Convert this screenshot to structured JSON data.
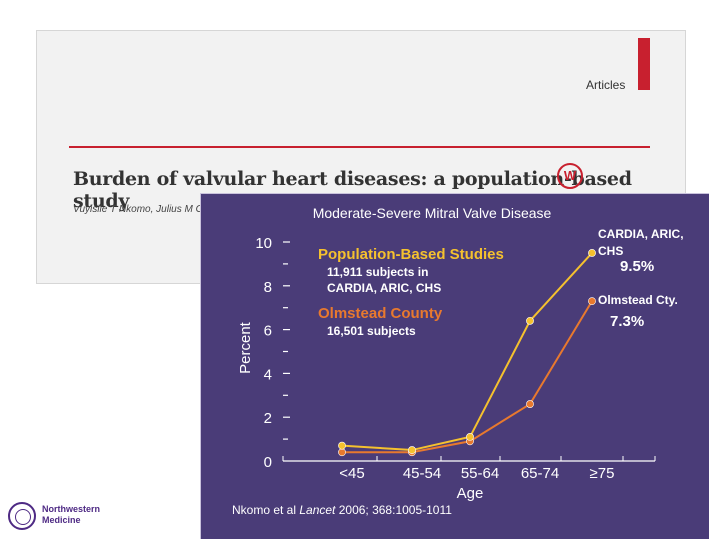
{
  "article": {
    "section": "Articles",
    "title": "Burden of valvular heart diseases: a population-based study",
    "badge": "W",
    "authors": "Vuyisile T Nkomo, Julius M Ga"
  },
  "chart_data": {
    "type": "line",
    "title": "Moderate-Severe Mitral Valve Disease",
    "xlabel": "Age",
    "ylabel": "Percent",
    "categories": [
      "<45",
      "45-54",
      "55-64",
      "65-74",
      "≥75"
    ],
    "yticks": [
      "0",
      "2",
      "4",
      "6",
      "8",
      "10"
    ],
    "ylim": [
      0,
      10.5
    ],
    "series": [
      {
        "name": "CARDIA, ARIC, CHS",
        "values": [
          0.7,
          0.5,
          1.1,
          6.4,
          9.5
        ],
        "color": "#f5c12e"
      },
      {
        "name": "Olmstead Cty.",
        "values": [
          0.4,
          0.4,
          0.9,
          2.6,
          7.3
        ],
        "color": "#e8792e"
      }
    ],
    "endpoint_labels": [
      {
        "name": "CARDIA, ARIC, CHS",
        "line1": "CARDIA, ARIC,",
        "line2": "CHS",
        "value": "9.5%"
      },
      {
        "name": "Olmstead Cty.",
        "line1": "Olmstead Cty.",
        "value": "7.3%"
      }
    ],
    "annotations": {
      "pop_title": "Population-Based Studies",
      "pop_line1": "11,911 subjects in",
      "pop_line2": "CARDIA, ARIC, CHS",
      "olm_title": "Olmstead County",
      "olm_line1": "16,501 subjects"
    },
    "grid": false,
    "legend": "none"
  },
  "citation": {
    "prefix": "Nkomo et al ",
    "journal": "Lancet",
    "suffix": " 2006; 368:1005-1011"
  },
  "logo": {
    "line1": "Northwestern",
    "line2": "Medicine"
  }
}
